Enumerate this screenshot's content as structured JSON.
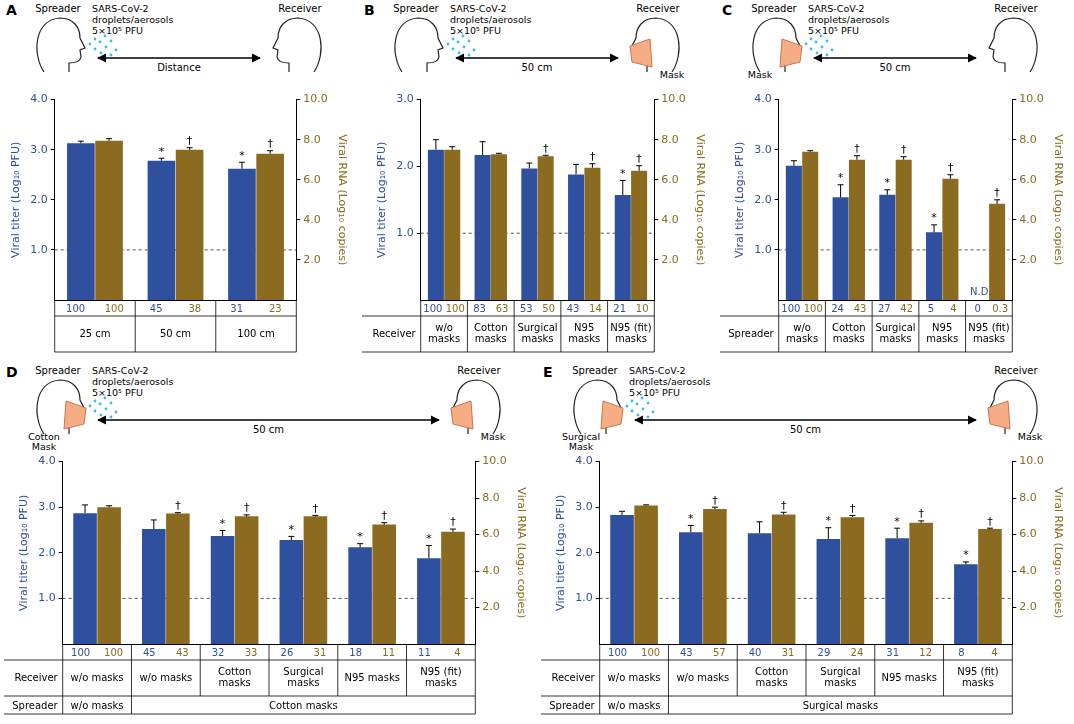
{
  "chart_data": [
    {
      "panel": "A",
      "type": "bar",
      "diagram": {
        "spreader": "Spreader",
        "receiver": "Receiver",
        "droplets": [
          "SARS-CoV-2",
          "droplets/aerosols",
          "5×10⁵ PFU"
        ],
        "distance": "Distance"
      },
      "categories": [
        "25 cm",
        "50 cm",
        "100 cm"
      ],
      "ylabel": "Viral titer (Log₁₀ PFU)",
      "y2label": "Viral RNA (Log₁₀ copies)",
      "ylim": [
        0,
        4
      ],
      "yticks": [
        {
          "value": 1,
          "label": "1.0"
        },
        {
          "value": 2,
          "label": "2.0"
        },
        {
          "value": 3,
          "label": "3.0"
        },
        {
          "value": 4,
          "label": "4.0"
        }
      ],
      "y2lim": [
        0,
        10
      ],
      "y2ticks": [
        {
          "value": 2,
          "label": "2.0"
        },
        {
          "value": 4,
          "label": "4.0"
        },
        {
          "value": 6,
          "label": "6.0"
        },
        {
          "value": 8,
          "label": "8.0"
        },
        {
          "value": 10,
          "label": "10.0"
        }
      ],
      "detection_limit": 1,
      "grid": false,
      "series": [
        {
          "axis": "y",
          "color": "#2f4f9f",
          "values": [
            3.13,
            2.78,
            2.62
          ],
          "errors": [
            0.04,
            0.05,
            0.13
          ],
          "significance": [
            null,
            "*",
            "*"
          ],
          "relative": [
            100,
            45,
            31
          ]
        },
        {
          "axis": "y2",
          "color": "#8b6b1f",
          "values": [
            7.95,
            7.5,
            7.3
          ],
          "errors": [
            0.1,
            0.1,
            0.15
          ],
          "significance": [
            null,
            "†",
            "†"
          ],
          "relative": [
            100,
            38,
            23
          ]
        }
      ]
    },
    {
      "panel": "B",
      "type": "bar",
      "diagram": {
        "spreader": "Spreader",
        "receiver": "Receiver",
        "droplets": [
          "SARS-CoV-2",
          "droplets/aerosols",
          "5×10⁵ PFU"
        ],
        "distance": "50 cm",
        "receiver_mask": "Mask"
      },
      "category_header": "Receiver",
      "categories": [
        "w/o masks",
        "Cotton masks",
        "Surgical masks",
        "N95 masks",
        "N95 (fit) masks"
      ],
      "ylabel": "Viral titer (Log₁₀ PFU)",
      "y2label": "Viral RNA (Log₁₀ copies)",
      "ylim": [
        0,
        3
      ],
      "yticks": [
        {
          "value": 1,
          "label": "1.0"
        },
        {
          "value": 2,
          "label": "2.0"
        },
        {
          "value": 3,
          "label": "3.0"
        }
      ],
      "y2lim": [
        0,
        10
      ],
      "y2ticks": [
        {
          "value": 2,
          "label": "2.0"
        },
        {
          "value": 4,
          "label": "4.0"
        },
        {
          "value": 6,
          "label": "6.0"
        },
        {
          "value": 8,
          "label": "8.0"
        },
        {
          "value": 10,
          "label": "10.0"
        }
      ],
      "detection_limit": 1,
      "grid": false,
      "series": [
        {
          "axis": "y",
          "color": "#2f4f9f",
          "values": [
            2.25,
            2.17,
            1.97,
            1.88,
            1.57
          ],
          "errors": [
            0.15,
            0.2,
            0.08,
            0.15,
            0.22
          ],
          "significance": [
            null,
            null,
            null,
            null,
            "*"
          ],
          "relative": [
            100,
            83,
            53,
            43,
            21
          ]
        },
        {
          "axis": "y2",
          "color": "#8b6b1f",
          "values": [
            7.5,
            7.27,
            7.17,
            6.6,
            6.45
          ],
          "errors": [
            0.15,
            0.05,
            0.05,
            0.2,
            0.25
          ],
          "significance": [
            null,
            null,
            "†",
            "†",
            "†"
          ],
          "relative": [
            100,
            63,
            50,
            14,
            10
          ]
        }
      ]
    },
    {
      "panel": "C",
      "type": "bar",
      "diagram": {
        "spreader": "Spreader",
        "receiver": "Receiver",
        "droplets": [
          "SARS-CoV-2",
          "droplets/aerosols",
          "5×10⁵ PFU"
        ],
        "distance": "50 cm",
        "spreader_mask": "Mask"
      },
      "category_header": "Spreader",
      "categories": [
        "w/o masks",
        "Cotton masks",
        "Surgical masks",
        "N95 masks",
        "N95 (fit) masks"
      ],
      "ylabel": "Viral titer (Log₁₀ PFU)",
      "y2label": "Viral RNA (Log₁₀ copies)",
      "ylim": [
        0,
        4
      ],
      "yticks": [
        {
          "value": 1,
          "label": "1.0"
        },
        {
          "value": 2,
          "label": "2.0"
        },
        {
          "value": 3,
          "label": "3.0"
        },
        {
          "value": 4,
          "label": "4.0"
        }
      ],
      "y2lim": [
        0,
        10
      ],
      "y2ticks": [
        {
          "value": 2,
          "label": "2.0"
        },
        {
          "value": 4,
          "label": "4.0"
        },
        {
          "value": 6,
          "label": "6.0"
        },
        {
          "value": 8,
          "label": "8.0"
        },
        {
          "value": 10,
          "label": "10.0"
        }
      ],
      "detection_limit": 1,
      "grid": false,
      "series": [
        {
          "axis": "y",
          "color": "#2f4f9f",
          "values": [
            2.68,
            2.05,
            2.1,
            1.35,
            null
          ],
          "value_labels": [
            null,
            null,
            null,
            null,
            "N.D."
          ],
          "errors": [
            0.1,
            0.25,
            0.1,
            0.15,
            null
          ],
          "significance": [
            null,
            "*",
            "*",
            "*",
            null
          ],
          "relative": [
            100,
            24,
            27,
            5,
            0
          ]
        },
        {
          "axis": "y2",
          "color": "#8b6b1f",
          "values": [
            7.4,
            7.0,
            7.0,
            6.05,
            4.8
          ],
          "errors": [
            0.05,
            0.2,
            0.15,
            0.2,
            0.2
          ],
          "significance": [
            null,
            "†",
            "†",
            "†",
            "†"
          ],
          "relative": [
            100,
            43,
            42,
            4,
            0.3
          ]
        }
      ]
    },
    {
      "panel": "D",
      "type": "bar",
      "diagram": {
        "spreader": "Spreader",
        "receiver": "Receiver",
        "droplets": [
          "SARS-CoV-2",
          "droplets/aerosols",
          "5×10⁵ PFU"
        ],
        "distance": "50 cm",
        "spreader_mask": "Cotton Mask",
        "receiver_mask": "Mask"
      },
      "category_header": "Receiver",
      "categories": [
        "w/o masks",
        "w/o masks",
        "Cotton masks",
        "Surgical masks",
        "N95 masks",
        "N95 (fit) masks"
      ],
      "spreader_row": {
        "label": "Spreader",
        "cells": [
          "w/o masks",
          "Cotton masks",
          "Cotton masks",
          "Cotton masks",
          "Cotton masks",
          "Cotton masks"
        ]
      },
      "ylabel": "Viral titer (Log₁₀ PFU)",
      "y2label": "Viral RNA (Log₁₀ copies)",
      "ylim": [
        0,
        4
      ],
      "yticks": [
        {
          "value": 1,
          "label": "1.0"
        },
        {
          "value": 2,
          "label": "2.0"
        },
        {
          "value": 3,
          "label": "3.0"
        },
        {
          "value": 4,
          "label": "4.0"
        }
      ],
      "y2lim": [
        0,
        10
      ],
      "y2ticks": [
        {
          "value": 2,
          "label": "2.0"
        },
        {
          "value": 4,
          "label": "4.0"
        },
        {
          "value": 6,
          "label": "6.0"
        },
        {
          "value": 8,
          "label": "8.0"
        },
        {
          "value": 10,
          "label": "10.0"
        }
      ],
      "detection_limit": 1,
      "grid": false,
      "series": [
        {
          "axis": "y",
          "color": "#2f4f9f",
          "values": [
            2.87,
            2.52,
            2.37,
            2.28,
            2.12,
            1.88
          ],
          "errors": [
            0.18,
            0.2,
            0.12,
            0.08,
            0.08,
            0.28
          ],
          "significance": [
            null,
            null,
            "*",
            "*",
            "*",
            "*"
          ],
          "relative": [
            100,
            45,
            32,
            26,
            18,
            11
          ]
        },
        {
          "axis": "y2",
          "color": "#8b6b1f",
          "values": [
            7.5,
            7.15,
            7.0,
            7.0,
            6.55,
            6.15
          ],
          "errors": [
            0.08,
            0.05,
            0.08,
            0.05,
            0.1,
            0.15
          ],
          "significance": [
            null,
            "†",
            "†",
            "†",
            "†",
            "†"
          ],
          "relative": [
            100,
            43,
            33,
            31,
            11,
            4
          ]
        }
      ]
    },
    {
      "panel": "E",
      "type": "bar",
      "diagram": {
        "spreader": "Spreader",
        "receiver": "Receiver",
        "droplets": [
          "SARS-CoV-2",
          "droplets/aerosols",
          "5×10⁵ PFU"
        ],
        "distance": "50 cm",
        "spreader_mask": "Surgical Mask",
        "receiver_mask": "Mask"
      },
      "category_header": "Receiver",
      "categories": [
        "w/o masks",
        "w/o masks",
        "Cotton masks",
        "Surgical masks",
        "N95 masks",
        "N95 (fit) masks"
      ],
      "spreader_row": {
        "label": "Spreader",
        "cells": [
          "w/o masks",
          "Surgical masks",
          "Surgical masks",
          "Surgical masks",
          "Surgical masks",
          "Surgical masks"
        ]
      },
      "ylabel": "Viral titer (Log₁₀ PFU)",
      "y2label": "Viral RNA (Log₁₀ copies)",
      "ylim": [
        0,
        4
      ],
      "yticks": [
        {
          "value": 1,
          "label": "1.0"
        },
        {
          "value": 2,
          "label": "2.0"
        },
        {
          "value": 3,
          "label": "3.0"
        },
        {
          "value": 4,
          "label": "4.0"
        }
      ],
      "y2lim": [
        0,
        10
      ],
      "y2ticks": [
        {
          "value": 2,
          "label": "2.0"
        },
        {
          "value": 4,
          "label": "4.0"
        },
        {
          "value": 6,
          "label": "6.0"
        },
        {
          "value": 8,
          "label": "8.0"
        },
        {
          "value": 10,
          "label": "10.0"
        }
      ],
      "detection_limit": 1,
      "grid": false,
      "series": [
        {
          "axis": "y",
          "color": "#2f4f9f",
          "values": [
            2.83,
            2.45,
            2.43,
            2.3,
            2.32,
            1.75
          ],
          "errors": [
            0.08,
            0.15,
            0.25,
            0.25,
            0.22,
            0.05
          ],
          "significance": [
            null,
            "*",
            null,
            "*",
            "*",
            "*"
          ],
          "relative": [
            100,
            43,
            40,
            29,
            31,
            8
          ]
        },
        {
          "axis": "y2",
          "color": "#8b6b1f",
          "values": [
            7.6,
            7.4,
            7.1,
            6.95,
            6.65,
            6.3
          ],
          "errors": [
            0.03,
            0.1,
            0.12,
            0.1,
            0.1,
            0.05
          ],
          "significance": [
            null,
            "†",
            "†",
            "†",
            "†",
            "†"
          ],
          "relative": [
            100,
            57,
            31,
            24,
            12,
            4
          ]
        }
      ]
    }
  ]
}
